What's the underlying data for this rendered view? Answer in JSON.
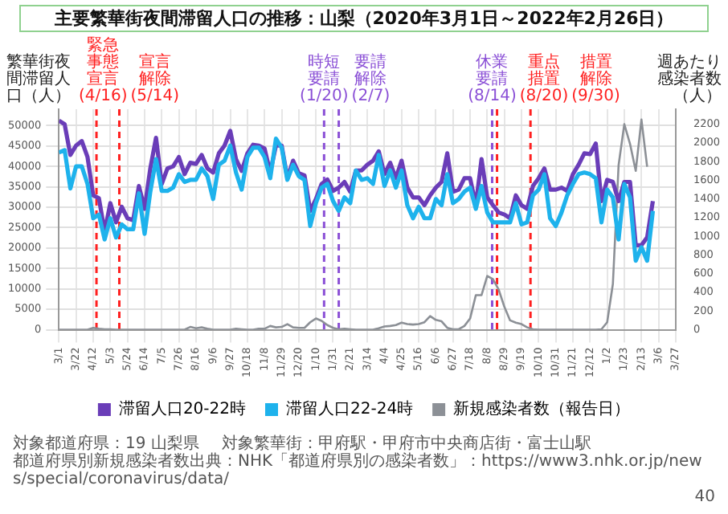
{
  "chart_data": {
    "type": "line",
    "title": "主要繁華街夜間滞留人口の推移：山梨（2020年3月1日～2022年2月26日）",
    "ylabel": "繁華街夜間滞留人口（人）",
    "y2label": "週あたり感染者数（人）",
    "x": [
      "2020-03-01",
      "2020-03-08",
      "2020-03-15",
      "2020-03-22",
      "2020-03-29",
      "2020-04-05",
      "2020-04-12",
      "2020-04-19",
      "2020-04-26",
      "2020-05-03",
      "2020-05-10",
      "2020-05-17",
      "2020-05-24",
      "2020-05-31",
      "2020-06-07",
      "2020-06-14",
      "2020-06-21",
      "2020-06-28",
      "2020-07-05",
      "2020-07-12",
      "2020-07-19",
      "2020-07-26",
      "2020-08-02",
      "2020-08-09",
      "2020-08-16",
      "2020-08-23",
      "2020-08-30",
      "2020-09-06",
      "2020-09-13",
      "2020-09-20",
      "2020-09-27",
      "2020-10-04",
      "2020-10-11",
      "2020-10-18",
      "2020-10-25",
      "2020-11-01",
      "2020-11-08",
      "2020-11-15",
      "2020-11-22",
      "2020-11-29",
      "2020-12-06",
      "2020-12-13",
      "2020-12-20",
      "2020-12-27",
      "2021-01-03",
      "2021-01-10",
      "2021-01-17",
      "2021-01-24",
      "2021-01-31",
      "2021-02-07",
      "2021-02-14",
      "2021-02-21",
      "2021-02-28",
      "2021-03-07",
      "2021-03-14",
      "2021-03-21",
      "2021-03-28",
      "2021-04-04",
      "2021-04-11",
      "2021-04-18",
      "2021-04-25",
      "2021-05-02",
      "2021-05-09",
      "2021-05-16",
      "2021-05-23",
      "2021-05-30",
      "2021-06-06",
      "2021-06-13",
      "2021-06-20",
      "2021-06-27",
      "2021-07-04",
      "2021-07-11",
      "2021-07-18",
      "2021-07-25",
      "2021-08-01",
      "2021-08-08",
      "2021-08-15",
      "2021-08-22",
      "2021-08-29",
      "2021-09-05",
      "2021-09-12",
      "2021-09-19",
      "2021-09-26",
      "2021-10-03",
      "2021-10-10",
      "2021-10-17",
      "2021-10-24",
      "2021-10-31",
      "2021-11-07",
      "2021-11-14",
      "2021-11-21",
      "2021-11-28",
      "2021-12-05",
      "2021-12-12",
      "2021-12-19",
      "2021-12-26",
      "2022-01-02",
      "2022-01-09",
      "2022-01-16",
      "2022-01-23",
      "2022-01-30",
      "2022-02-06",
      "2022-02-13",
      "2022-02-20",
      "2022-02-27"
    ],
    "series": [
      {
        "name": "新規感染者数（報告日）",
        "color": "#8c9096",
        "axis": "y2",
        "values": [
          0,
          0,
          0,
          0,
          0,
          0,
          20,
          10,
          5,
          5,
          0,
          0,
          0,
          0,
          0,
          0,
          0,
          0,
          0,
          0,
          0,
          0,
          0,
          30,
          15,
          25,
          10,
          0,
          0,
          0,
          0,
          10,
          5,
          0,
          0,
          10,
          10,
          40,
          25,
          30,
          60,
          25,
          20,
          20,
          80,
          120,
          95,
          50,
          20,
          5,
          10,
          5,
          0,
          0,
          0,
          0,
          15,
          35,
          40,
          50,
          75,
          60,
          55,
          60,
          80,
          145,
          105,
          90,
          20,
          5,
          5,
          40,
          120,
          370,
          370,
          575,
          540,
          430,
          245,
          100,
          75,
          60,
          25,
          5,
          0,
          0,
          0,
          0,
          0,
          0,
          0,
          0,
          0,
          0,
          0,
          5,
          80,
          490,
          1760,
          2200,
          1990,
          1700,
          2250,
          1745,
          null
        ]
      },
      {
        "name": "滞留人口20-22時",
        "color": "#6a3db8",
        "values": [
          51200,
          50300,
          42800,
          45100,
          46200,
          42300,
          32900,
          32200,
          24000,
          31000,
          26300,
          30100,
          27300,
          26800,
          35200,
          29600,
          39500,
          47000,
          35700,
          39500,
          40000,
          42300,
          38100,
          40900,
          40600,
          42800,
          39500,
          38500,
          43200,
          45100,
          48700,
          41800,
          38900,
          43200,
          45300,
          45100,
          44400,
          38500,
          45100,
          45100,
          37100,
          41400,
          38300,
          37800,
          29100,
          32000,
          35700,
          36800,
          34000,
          34800,
          36200,
          33800,
          39000,
          39000,
          40400,
          41400,
          43700,
          38100,
          40900,
          37100,
          41400,
          34800,
          32400,
          32400,
          30500,
          32900,
          34800,
          36200,
          43200,
          33800,
          34300,
          37100,
          37100,
          30500,
          41800,
          32400,
          30500,
          28700,
          28200,
          27300,
          32900,
          30500,
          29600,
          35200,
          37100,
          39500,
          34300,
          34300,
          34800,
          34000,
          38100,
          40400,
          43200,
          43000,
          45600,
          31500,
          36700,
          36200,
          31500,
          36200,
          36200,
          20700,
          20700,
          22600,
          31500
        ]
      },
      {
        "name": "滞留人口22-24時",
        "color": "#1eb2ec",
        "values": [
          43400,
          44000,
          34600,
          40000,
          40000,
          35700,
          27300,
          28200,
          22100,
          27300,
          22600,
          25800,
          24600,
          24600,
          33400,
          23500,
          33800,
          41800,
          34000,
          34000,
          34800,
          38100,
          36200,
          36700,
          36700,
          39500,
          37600,
          32000,
          40400,
          41400,
          45100,
          38500,
          34300,
          42300,
          44600,
          44600,
          42300,
          37100,
          46800,
          44600,
          36700,
          40400,
          37600,
          36700,
          25400,
          31000,
          34800,
          35700,
          31500,
          29100,
          32400,
          31000,
          39000,
          36700,
          37100,
          35700,
          42800,
          35200,
          39000,
          34800,
          39000,
          30500,
          27300,
          30100,
          27300,
          27300,
          32000,
          30500,
          38100,
          31000,
          32000,
          33800,
          34800,
          29600,
          35200,
          28700,
          26300,
          26300,
          26300,
          26300,
          31000,
          25800,
          26300,
          32900,
          34300,
          38100,
          27300,
          25400,
          28700,
          32900,
          35700,
          38100,
          38500,
          38100,
          37100,
          26300,
          34300,
          32400,
          22100,
          35700,
          32400,
          16900,
          20200,
          16900,
          29100
        ]
      }
    ],
    "xlim": [
      "2020-03-01",
      "2022-03-27"
    ],
    "xticks": [
      {
        "value": "2020-03-01",
        "label": "3/1"
      },
      {
        "value": "2020-03-22",
        "label": "3/22"
      },
      {
        "value": "2020-04-12",
        "label": "4/12"
      },
      {
        "value": "2020-05-03",
        "label": "5/3"
      },
      {
        "value": "2020-05-24",
        "label": "5/24"
      },
      {
        "value": "2020-06-14",
        "label": "6/14"
      },
      {
        "value": "2020-07-05",
        "label": "7/5"
      },
      {
        "value": "2020-07-26",
        "label": "7/26"
      },
      {
        "value": "2020-08-16",
        "label": "8/16"
      },
      {
        "value": "2020-09-06",
        "label": "9/6"
      },
      {
        "value": "2020-09-27",
        "label": "9/27"
      },
      {
        "value": "2020-10-18",
        "label": "10/18"
      },
      {
        "value": "2020-11-08",
        "label": "11/8"
      },
      {
        "value": "2020-11-29",
        "label": "11/29"
      },
      {
        "value": "2020-12-20",
        "label": "12/20"
      },
      {
        "value": "2021-01-10",
        "label": "1/10"
      },
      {
        "value": "2021-01-31",
        "label": "1/31"
      },
      {
        "value": "2021-02-21",
        "label": "2/21"
      },
      {
        "value": "2021-03-14",
        "label": "3/14"
      },
      {
        "value": "2021-04-04",
        "label": "4/4"
      },
      {
        "value": "2021-04-25",
        "label": "4/25"
      },
      {
        "value": "2021-05-16",
        "label": "5/16"
      },
      {
        "value": "2021-06-06",
        "label": "6/6"
      },
      {
        "value": "2021-06-27",
        "label": "6/27"
      },
      {
        "value": "2021-07-18",
        "label": "7/18"
      },
      {
        "value": "2021-08-08",
        "label": "8/8"
      },
      {
        "value": "2021-08-29",
        "label": "8/29"
      },
      {
        "value": "2021-09-19",
        "label": "9/19"
      },
      {
        "value": "2021-10-10",
        "label": "10/10"
      },
      {
        "value": "2021-10-31",
        "label": "10/31"
      },
      {
        "value": "2021-11-21",
        "label": "11/21"
      },
      {
        "value": "2021-12-12",
        "label": "12/12"
      },
      {
        "value": "2022-01-02",
        "label": "1/2"
      },
      {
        "value": "2022-01-23",
        "label": "1/23"
      },
      {
        "value": "2022-02-13",
        "label": "2/13"
      },
      {
        "value": "2022-03-06",
        "label": "3/6"
      },
      {
        "value": "2022-03-27",
        "label": "3/27"
      }
    ],
    "ylim": [
      0,
      54000
    ],
    "yticks": [
      0,
      5000,
      10000,
      15000,
      20000,
      25000,
      30000,
      35000,
      40000,
      45000,
      50000
    ],
    "y2lim": [
      0,
      2360
    ],
    "y2ticks": [
      0,
      200,
      400,
      600,
      800,
      1000,
      1200,
      1400,
      1600,
      1800,
      2000,
      2200
    ],
    "ref_lines": [
      {
        "axis": "x",
        "value": "2020-04-16",
        "label": "緊急事態宣言(4/16)",
        "color": "#ff2020",
        "line_style": "dashed"
      },
      {
        "axis": "x",
        "value": "2020-05-14",
        "label": "宣言解除(5/14)",
        "color": "#ff2020",
        "line_style": "dashed"
      },
      {
        "axis": "x",
        "value": "2021-01-20",
        "label": "時短要請(1/20)",
        "color": "#8a4fd6",
        "line_style": "dashed"
      },
      {
        "axis": "x",
        "value": "2021-02-07",
        "label": "要請解除(2/7)",
        "color": "#8a4fd6",
        "line_style": "dashed"
      },
      {
        "axis": "x",
        "value": "2021-08-14",
        "label": "休業要請(8/14)",
        "color": "#8a4fd6",
        "line_style": "dashed"
      },
      {
        "axis": "x",
        "value": "2021-08-20",
        "label": "重点措置(8/20)",
        "color": "#ff2020",
        "line_style": "dashed"
      },
      {
        "axis": "x",
        "value": "2021-09-30",
        "label": "措置解除(9/30)",
        "color": "#ff2020",
        "line_style": "dashed"
      }
    ],
    "annotations": [
      "対象都道府県：19 山梨県",
      "対象繁華街：甲府駅・甲府市中央商店街・富士山駅",
      "都道府県別新規感染者数出典：NHK「都道府県別の感染者数」：https://www3.nhk.or.jp/news/special/coronavirus/data/",
      "40"
    ],
    "grid": true,
    "legend": "bottom",
    "marker": "none"
  }
}
